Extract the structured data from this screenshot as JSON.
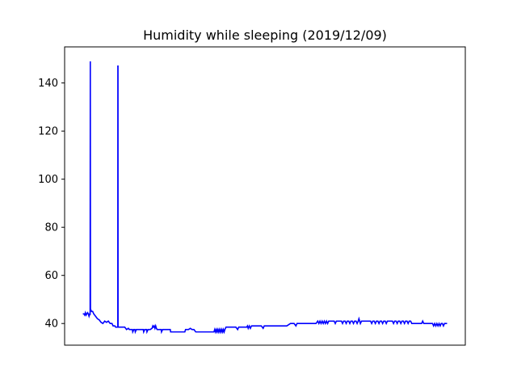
{
  "chart_data": {
    "type": "line",
    "title": "Humidity while sleeping (2019/12/09)",
    "xlabel": "",
    "ylabel": "",
    "x_ticks_visible": false,
    "ylim": [
      31,
      155
    ],
    "yticks": [
      40,
      60,
      80,
      100,
      120,
      140
    ],
    "xlim": [
      -5,
      105
    ],
    "grid": false,
    "legend": null,
    "series": [
      {
        "color": "#0000ff",
        "points": [
          [
            0.0,
            44
          ],
          [
            0.3,
            44
          ],
          [
            0.5,
            43.5
          ],
          [
            0.7,
            44.5
          ],
          [
            0.9,
            43.5
          ],
          [
            1.1,
            44
          ],
          [
            1.3,
            44.5
          ],
          [
            1.5,
            44
          ],
          [
            1.7,
            43
          ],
          [
            1.9,
            44
          ],
          [
            2.0,
            43.5
          ],
          [
            2.05,
            149
          ],
          [
            2.1,
            46
          ],
          [
            2.4,
            45
          ],
          [
            2.7,
            45
          ],
          [
            3.0,
            44
          ],
          [
            3.5,
            43
          ],
          [
            4.0,
            42
          ],
          [
            4.5,
            41.5
          ],
          [
            5.0,
            40.5
          ],
          [
            5.5,
            40
          ],
          [
            6.0,
            41
          ],
          [
            6.5,
            40.5
          ],
          [
            7.0,
            41
          ],
          [
            7.5,
            40
          ],
          [
            8.0,
            40
          ],
          [
            8.3,
            39
          ],
          [
            8.8,
            39
          ],
          [
            9.0,
            38.5
          ],
          [
            9.6,
            38.5
          ],
          [
            9.62,
            147
          ],
          [
            9.65,
            147
          ],
          [
            9.67,
            38.5
          ],
          [
            10.5,
            38.5
          ],
          [
            11.0,
            38.5
          ],
          [
            11.5,
            38.5
          ],
          [
            12.0,
            37.5
          ],
          [
            12.5,
            38
          ],
          [
            12.8,
            37.5
          ],
          [
            13.2,
            37.5
          ],
          [
            13.6,
            37.5
          ],
          [
            13.7,
            36.5
          ],
          [
            14.0,
            37.5
          ],
          [
            14.3,
            37.5
          ],
          [
            14.4,
            36.5
          ],
          [
            14.7,
            37.5
          ],
          [
            15.5,
            37.5
          ],
          [
            16.0,
            37.5
          ],
          [
            16.6,
            37.5
          ],
          [
            16.7,
            36.5
          ],
          [
            17.0,
            37.5
          ],
          [
            17.5,
            37.5
          ],
          [
            17.6,
            36.5
          ],
          [
            17.9,
            37.5
          ],
          [
            18.5,
            37.5
          ],
          [
            19.0,
            38
          ],
          [
            19.2,
            39
          ],
          [
            19.4,
            38.5
          ],
          [
            19.6,
            39
          ],
          [
            19.8,
            38
          ],
          [
            20.0,
            39
          ],
          [
            20.2,
            38
          ],
          [
            20.4,
            37.5
          ],
          [
            21.0,
            37.5
          ],
          [
            21.5,
            37.5
          ],
          [
            21.6,
            36.5
          ],
          [
            21.9,
            37.5
          ],
          [
            22.5,
            37.5
          ],
          [
            23.5,
            37.5
          ],
          [
            24.0,
            37.5
          ],
          [
            24.1,
            36.5
          ],
          [
            25.0,
            36.5
          ],
          [
            26.0,
            36.5
          ],
          [
            27.0,
            36.5
          ],
          [
            28.0,
            36.5
          ],
          [
            28.2,
            37.5
          ],
          [
            29.0,
            37.5
          ],
          [
            29.5,
            38
          ],
          [
            30.0,
            37.5
          ],
          [
            30.5,
            37.5
          ],
          [
            31.0,
            36.5
          ],
          [
            32.0,
            36.5
          ],
          [
            33.0,
            36.5
          ],
          [
            34.0,
            36.5
          ],
          [
            35.0,
            36.5
          ],
          [
            36.0,
            36.5
          ],
          [
            36.2,
            37.5
          ],
          [
            36.4,
            36.5
          ],
          [
            36.6,
            37.5
          ],
          [
            36.8,
            36.5
          ],
          [
            37.0,
            37.5
          ],
          [
            37.2,
            36.5
          ],
          [
            37.4,
            37.5
          ],
          [
            37.6,
            36.5
          ],
          [
            37.8,
            37.5
          ],
          [
            38.0,
            36.5
          ],
          [
            38.2,
            37.5
          ],
          [
            38.4,
            36.5
          ],
          [
            38.6,
            37.5
          ],
          [
            38.8,
            36.5
          ],
          [
            39.0,
            37.5
          ],
          [
            39.3,
            38.5
          ],
          [
            40.0,
            38.5
          ],
          [
            41.0,
            38.5
          ],
          [
            42.0,
            38.5
          ],
          [
            42.5,
            37.5
          ],
          [
            42.8,
            38.5
          ],
          [
            44.0,
            38.5
          ],
          [
            45.0,
            38.5
          ],
          [
            45.2,
            39
          ],
          [
            45.4,
            38
          ],
          [
            45.7,
            39
          ],
          [
            46.0,
            38
          ],
          [
            46.3,
            39
          ],
          [
            47.0,
            39
          ],
          [
            48.0,
            39
          ],
          [
            49.0,
            39
          ],
          [
            49.5,
            38
          ],
          [
            49.8,
            39
          ],
          [
            51.0,
            39
          ],
          [
            52.0,
            39
          ],
          [
            53.0,
            39
          ],
          [
            54.0,
            39
          ],
          [
            55.0,
            39
          ],
          [
            56.0,
            39
          ],
          [
            57.0,
            40
          ],
          [
            58.0,
            40
          ],
          [
            58.5,
            39
          ],
          [
            58.8,
            40
          ],
          [
            60.0,
            40
          ],
          [
            61.0,
            40
          ],
          [
            62.0,
            40
          ],
          [
            63.0,
            40
          ],
          [
            64.0,
            40
          ],
          [
            64.5,
            41
          ],
          [
            64.8,
            40
          ],
          [
            65.1,
            41
          ],
          [
            65.4,
            40
          ],
          [
            65.7,
            41
          ],
          [
            66.0,
            40
          ],
          [
            66.3,
            41
          ],
          [
            66.6,
            40
          ],
          [
            66.9,
            41
          ],
          [
            67.2,
            40
          ],
          [
            67.5,
            41
          ],
          [
            68.0,
            41
          ],
          [
            69.0,
            41
          ],
          [
            69.3,
            40
          ],
          [
            69.6,
            41
          ],
          [
            70.0,
            41
          ],
          [
            71.0,
            41
          ],
          [
            71.3,
            40
          ],
          [
            71.6,
            41
          ],
          [
            72.0,
            41
          ],
          [
            72.3,
            40
          ],
          [
            72.6,
            41
          ],
          [
            73.0,
            41
          ],
          [
            73.3,
            40
          ],
          [
            73.6,
            41
          ],
          [
            74.0,
            41
          ],
          [
            74.3,
            40
          ],
          [
            74.6,
            41
          ],
          [
            75.0,
            41
          ],
          [
            75.3,
            40
          ],
          [
            75.6,
            41
          ],
          [
            75.8,
            42
          ],
          [
            76.0,
            41
          ],
          [
            76.2,
            40
          ],
          [
            76.5,
            41
          ],
          [
            77.0,
            41
          ],
          [
            78.0,
            41
          ],
          [
            79.0,
            41
          ],
          [
            79.3,
            40
          ],
          [
            79.6,
            41
          ],
          [
            80.0,
            41
          ],
          [
            80.3,
            40
          ],
          [
            80.6,
            41
          ],
          [
            81.0,
            41
          ],
          [
            81.3,
            40
          ],
          [
            81.6,
            41
          ],
          [
            82.0,
            41
          ],
          [
            82.3,
            40
          ],
          [
            82.6,
            41
          ],
          [
            83.0,
            41
          ],
          [
            83.3,
            40
          ],
          [
            83.6,
            41
          ],
          [
            84.0,
            41
          ],
          [
            85.0,
            41
          ],
          [
            85.3,
            40
          ],
          [
            85.6,
            41
          ],
          [
            86.0,
            41
          ],
          [
            86.3,
            40
          ],
          [
            86.6,
            41
          ],
          [
            87.0,
            41
          ],
          [
            87.3,
            40
          ],
          [
            87.6,
            41
          ],
          [
            88.0,
            41
          ],
          [
            88.3,
            40
          ],
          [
            88.6,
            41
          ],
          [
            89.0,
            41
          ],
          [
            89.3,
            40
          ],
          [
            89.6,
            41
          ],
          [
            90.0,
            41
          ],
          [
            90.3,
            40
          ],
          [
            91.0,
            40
          ],
          [
            92.0,
            40
          ],
          [
            93.0,
            40
          ],
          [
            93.3,
            41
          ],
          [
            93.6,
            40
          ],
          [
            94.0,
            40
          ],
          [
            95.0,
            40
          ],
          [
            96.0,
            40
          ],
          [
            96.3,
            39
          ],
          [
            96.6,
            40
          ],
          [
            96.9,
            39
          ],
          [
            97.2,
            40
          ],
          [
            97.5,
            39
          ],
          [
            97.8,
            40
          ],
          [
            98.1,
            39
          ],
          [
            98.4,
            40
          ],
          [
            98.7,
            40
          ],
          [
            99.0,
            39
          ],
          [
            99.3,
            40
          ],
          [
            99.6,
            40
          ],
          [
            100.0,
            40
          ]
        ]
      }
    ]
  }
}
